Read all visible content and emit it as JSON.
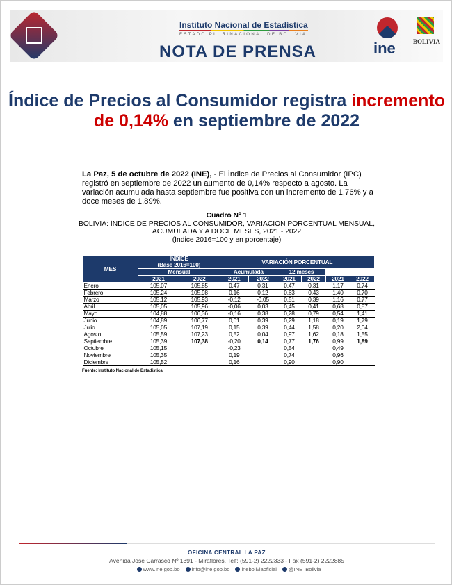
{
  "header": {
    "institute": "Instituto Nacional de Estadística",
    "state": "ESTADO PLURINACIONAL DE BOLIVIA",
    "title": "NOTA DE PRENSA",
    "logo": "ine",
    "emblem": "BOLIVIA"
  },
  "headline": {
    "part1": "Índice de Precios al Consumidor registra ",
    "highlight": "incremento de 0,14%",
    "part2": " en septiembre de 2022",
    "accent": "#cc0000"
  },
  "lead": {
    "dateline": "La Paz, 5 de octubre de 2022 (INE),",
    "body": " - El Índice de Precios al Consumidor (IPC) registró en septiembre de 2022 un aumento de 0,14% respecto a agosto. La variación acumulada hasta septiembre fue positiva con un incremento de 1,76% y a doce meses de 1,89%."
  },
  "caption": {
    "number": "Cuadro Nº 1",
    "title": "BOLIVIA: ÍNDICE DE PRECIOS AL CONSUMIDOR, VARIACIÓN PORCENTUAL MENSUAL, ACUMULADA Y A DOCE MESES, 2021 - 2022",
    "subtitle": "(Índice 2016=100 y en porcentaje)"
  },
  "table": {
    "h_mes": "MES",
    "h_indice": "ÍNDICE",
    "h_base": "(Base 2016=100)",
    "h_var": "VARIACIÓN PORCENTUAL",
    "h_mensual": "Mensual",
    "h_acum": "Acumulada",
    "h_12": "12 meses",
    "years": [
      "2021",
      "2022",
      "2021",
      "2022",
      "2021",
      "2022",
      "2021",
      "2022"
    ],
    "rows": [
      [
        "Enero",
        "105,07",
        "105,85",
        "0,47",
        "0,31",
        "0,47",
        "0,31",
        "1,17",
        "0,74"
      ],
      [
        "Febrero",
        "105,24",
        "105,98",
        "0,16",
        "0,12",
        "0,63",
        "0,43",
        "1,40",
        "0,70"
      ],
      [
        "Marzo",
        "105,12",
        "105,93",
        "-0,12",
        "-0,05",
        "0,51",
        "0,39",
        "1,16",
        "0,77"
      ],
      [
        "Abril",
        "105,05",
        "105,96",
        "-0,06",
        "0,03",
        "0,45",
        "0,41",
        "0,68",
        "0,87"
      ],
      [
        "Mayo",
        "104,88",
        "106,36",
        "-0,16",
        "0,38",
        "0,28",
        "0,79",
        "0,54",
        "1,41"
      ],
      [
        "Junio",
        "104,89",
        "106,77",
        "0,01",
        "0,39",
        "0,29",
        "1,18",
        "0,19",
        "1,79"
      ],
      [
        "Julio",
        "105,05",
        "107,19",
        "0,15",
        "0,39",
        "0,44",
        "1,58",
        "0,20",
        "2,04"
      ],
      [
        "Agosto",
        "105,59",
        "107,23",
        "0,52",
        "0,04",
        "0,97",
        "1,62",
        "0,18",
        "1,55"
      ],
      [
        "Septiembre",
        "105,39",
        "107,38",
        "-0,20",
        "0,14",
        "0,77",
        "1,76",
        "0,99",
        "1,89"
      ],
      [
        "Octubre",
        "105,15",
        "",
        "-0,23",
        "",
        "0,54",
        "",
        "0,49",
        ""
      ],
      [
        "Noviembre",
        "105,35",
        "",
        "0,19",
        "",
        "0,74",
        "",
        "0,96",
        ""
      ],
      [
        "Diciembre",
        "105,52",
        "",
        "0,16",
        "",
        "0,90",
        "",
        "0,90",
        ""
      ]
    ],
    "source": "Fuente: Instituto Nacional de Estadística"
  },
  "footer": {
    "office": "OFICINA CENTRAL LA PAZ",
    "address": "Avenida José Carrasco Nº 1391 - Miraflores, Telf: (591-2) 2222333 - Fax (591-2) 2222885",
    "web": "www.ine.gob.bo",
    "email": "info@ine.gob.bo",
    "facebook": "ineboliviaoficial",
    "twitter": "@INE_Bolivia"
  }
}
